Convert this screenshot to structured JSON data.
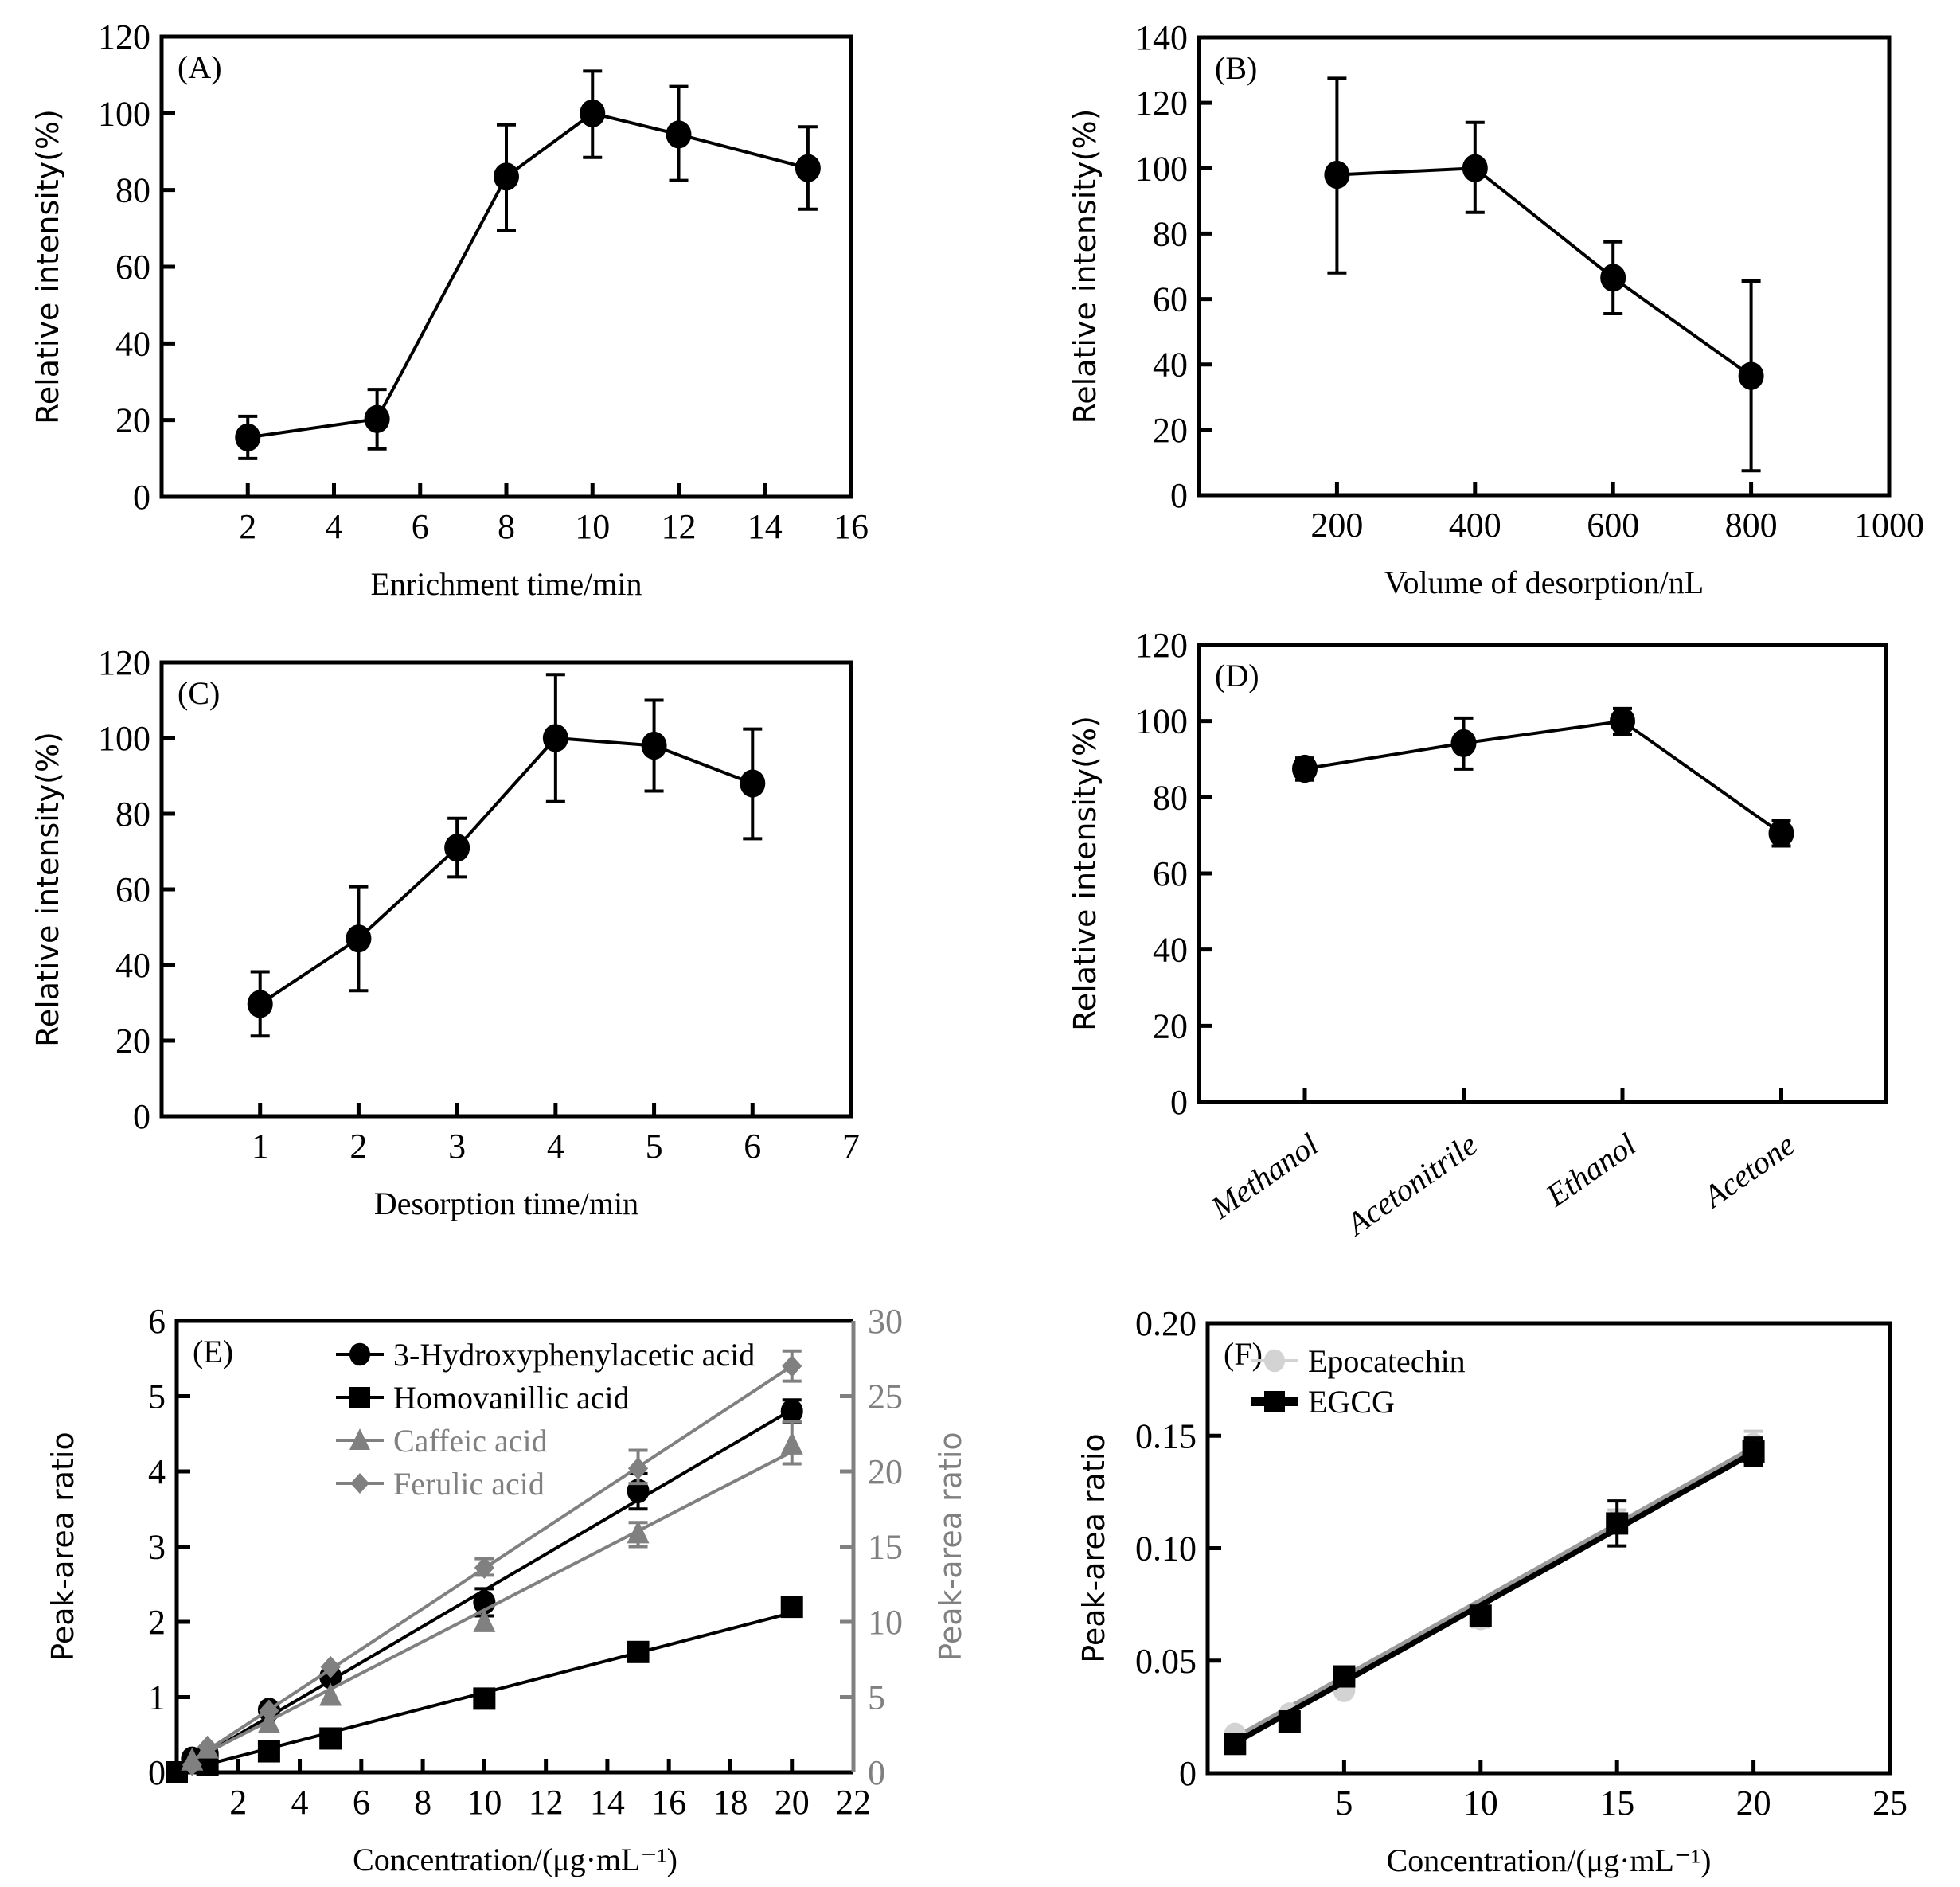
{
  "chart_data": [
    {
      "id": "A",
      "type": "line",
      "panel_label": "(A)",
      "xlabel": "Enrichment time/min",
      "ylabel": "Relative intensity(%)",
      "xlim": [
        0,
        16
      ],
      "ylim": [
        0,
        120
      ],
      "xticks": [
        2,
        4,
        6,
        8,
        10,
        12,
        14,
        16
      ],
      "yticks": [
        0,
        20,
        40,
        60,
        80,
        100,
        120
      ],
      "grid": false,
      "series": [
        {
          "name": "Relative intensity",
          "color": "#000000",
          "marker": "circle",
          "x": [
            2,
            5,
            8,
            10,
            12,
            15
          ],
          "y": [
            15.5,
            20.3,
            83.5,
            100,
            94.5,
            85.7
          ],
          "err_low": [
            10,
            12.5,
            69.5,
            88.5,
            82.5,
            75
          ],
          "err_high": [
            21,
            28,
            97,
            111,
            107,
            96.5
          ]
        }
      ]
    },
    {
      "id": "B",
      "type": "line",
      "panel_label": "(B)",
      "xlabel": "Volume of desorption/nL",
      "ylabel": "Relative intensity(%)",
      "xlim": [
        0,
        1000
      ],
      "ylim": [
        0,
        140
      ],
      "xticks": [
        200,
        400,
        600,
        800,
        1000
      ],
      "yticks": [
        0,
        20,
        40,
        60,
        80,
        100,
        120,
        140
      ],
      "grid": false,
      "series": [
        {
          "name": "Relative intensity",
          "color": "#000000",
          "marker": "circle",
          "x": [
            200,
            400,
            600,
            800
          ],
          "y": [
            98,
            100,
            66.5,
            36.5
          ],
          "err_low": [
            68,
            86.5,
            55.5,
            7.5
          ],
          "err_high": [
            127.5,
            114,
            77.5,
            65.5
          ]
        }
      ]
    },
    {
      "id": "C",
      "type": "line",
      "panel_label": "(C)",
      "xlabel": "Desorption time/min",
      "ylabel": "Relative intensity(%)",
      "xlim": [
        0,
        7
      ],
      "ylim": [
        0,
        120
      ],
      "xticks": [
        1,
        2,
        3,
        4,
        5,
        6,
        7
      ],
      "yticks": [
        0,
        20,
        40,
        60,
        80,
        100,
        120
      ],
      "grid": false,
      "series": [
        {
          "name": "Relative intensity",
          "color": "#000000",
          "marker": "circle",
          "x": [
            1,
            2,
            3,
            4,
            5,
            6
          ],
          "y": [
            29.7,
            47,
            71,
            100,
            98,
            88
          ],
          "err_low": [
            21.2,
            33.2,
            63.3,
            83.2,
            86,
            73.4
          ],
          "err_high": [
            38.2,
            60.7,
            78.8,
            116.8,
            110,
            102.4
          ]
        }
      ]
    },
    {
      "id": "D",
      "type": "line",
      "panel_label": "(D)",
      "xlabel": "",
      "ylabel": "Relative intensity(%)",
      "categories": [
        "Methanol",
        "Acetonitrile",
        "Ethanol",
        "Acetone"
      ],
      "ylim": [
        0,
        120
      ],
      "yticks": [
        0,
        20,
        40,
        60,
        80,
        100,
        120
      ],
      "grid": false,
      "series": [
        {
          "name": "Relative intensity",
          "color": "#000000",
          "marker": "circle",
          "y": [
            87.5,
            94.2,
            100,
            70.5
          ],
          "err_low": [
            84.5,
            87.4,
            96.5,
            67.2
          ],
          "err_high": [
            90.3,
            100.8,
            103.3,
            73.8
          ]
        }
      ]
    },
    {
      "id": "E",
      "type": "line",
      "panel_label": "(E)",
      "xlabel": "Concentration/(μg·mL⁻¹)",
      "ylabel": "Peak-area ratio",
      "ylabel_right": "Peak-area ratio",
      "right_axis_color": "#808080",
      "xlim": [
        0,
        22
      ],
      "ylim": [
        0,
        6
      ],
      "ylim_right": [
        0,
        30
      ],
      "xticks": [
        2,
        4,
        6,
        8,
        10,
        12,
        14,
        16,
        18,
        20,
        22
      ],
      "yticks": [
        0,
        1,
        2,
        3,
        4,
        5,
        6
      ],
      "yticks_right": [
        0,
        5,
        10,
        15,
        20,
        25,
        30
      ],
      "grid": false,
      "legend_position": "top-left",
      "series": [
        {
          "name": "3-Hydroxyphenylacetic acid",
          "axis": "left",
          "color": "#000000",
          "marker": "circle",
          "x": [
            0.5,
            1,
            3,
            5,
            10,
            15,
            20
          ],
          "y": [
            0.18,
            0.25,
            0.83,
            1.27,
            2.26,
            3.74,
            4.8
          ],
          "err_low": [
            null,
            null,
            null,
            null,
            2.08,
            3.5,
            4.65
          ],
          "err_high": [
            null,
            null,
            null,
            null,
            2.44,
            3.97,
            4.95
          ],
          "fit": [
            0.0,
            0.02,
            20,
            4.82
          ]
        },
        {
          "name": "Homovanillic acid",
          "axis": "left",
          "color": "#000000",
          "marker": "square",
          "x": [
            0,
            1,
            3,
            5,
            10,
            15,
            20
          ],
          "y": [
            0,
            0.1,
            0.28,
            0.45,
            0.98,
            1.6,
            2.2
          ],
          "err_low": [
            null,
            null,
            null,
            null,
            null,
            null,
            2.08
          ],
          "err_high": [
            null,
            null,
            null,
            null,
            null,
            null,
            2.32
          ],
          "fit": [
            0,
            0.0,
            20,
            2.12
          ]
        },
        {
          "name": "Caffeic acid",
          "axis": "right",
          "color": "#808080",
          "marker": "triangle",
          "x": [
            0.5,
            1,
            3,
            5,
            10,
            15,
            20
          ],
          "y": [
            0.8,
            1.6,
            3.3,
            5.1,
            10,
            15.9,
            21.8
          ],
          "err_low": [
            null,
            null,
            null,
            null,
            null,
            15.0,
            20.5
          ],
          "err_high": [
            null,
            null,
            null,
            null,
            null,
            16.6,
            23.3
          ],
          "fit": [
            0.5,
            0.8,
            20,
            21.3
          ]
        },
        {
          "name": "Ferulic acid",
          "axis": "right",
          "color": "#808080",
          "marker": "diamond",
          "x": [
            0.5,
            1,
            3,
            5,
            10,
            15,
            20
          ],
          "y": [
            0.5,
            1.7,
            4.1,
            7,
            13.6,
            20.2,
            27
          ],
          "err_low": [
            null,
            null,
            null,
            null,
            13.1,
            19.2,
            26
          ],
          "err_high": [
            null,
            null,
            null,
            null,
            14.2,
            21.4,
            28
          ],
          "fit": [
            0.5,
            0.8,
            20,
            27
          ]
        }
      ]
    },
    {
      "id": "F",
      "type": "line",
      "panel_label": "(F)",
      "xlabel": "Concentration/(μg·mL⁻¹)",
      "ylabel": "Peak-area ratio",
      "xlim": [
        0,
        25
      ],
      "ylim": [
        0,
        0.2
      ],
      "xticks": [
        5,
        10,
        15,
        20,
        25
      ],
      "yticks": [
        0,
        0.05,
        0.1,
        0.15,
        0.2
      ],
      "ytick_labels": [
        "0",
        "0.05",
        "0.10",
        "0.15",
        "0.20"
      ],
      "grid": false,
      "legend_position": "top-left",
      "series": [
        {
          "name": "Epocatechin",
          "color": "#d3d3d3",
          "marker": "circle",
          "x": [
            1,
            3,
            5,
            10,
            15,
            20
          ],
          "y": [
            0.017,
            0.026,
            0.037,
            0.069,
            0.112,
            0.146
          ],
          "err_low": [
            null,
            null,
            null,
            0.065,
            0.107,
            0.141
          ],
          "err_high": [
            null,
            null,
            null,
            0.073,
            0.117,
            0.152
          ],
          "fit": [
            1,
            0.0155,
            20,
            0.1445
          ]
        },
        {
          "name": "EGCG",
          "color": "#000000",
          "marker": "square",
          "x": [
            1,
            3,
            5,
            10,
            15,
            20
          ],
          "y": [
            0.013,
            0.023,
            0.043,
            0.07,
            0.111,
            0.143
          ],
          "err_low": [
            null,
            null,
            null,
            0.066,
            0.101,
            0.137
          ],
          "err_high": [
            null,
            null,
            null,
            0.074,
            0.121,
            0.149
          ],
          "fit": [
            1,
            0.0135,
            20,
            0.1425
          ]
        }
      ]
    }
  ]
}
